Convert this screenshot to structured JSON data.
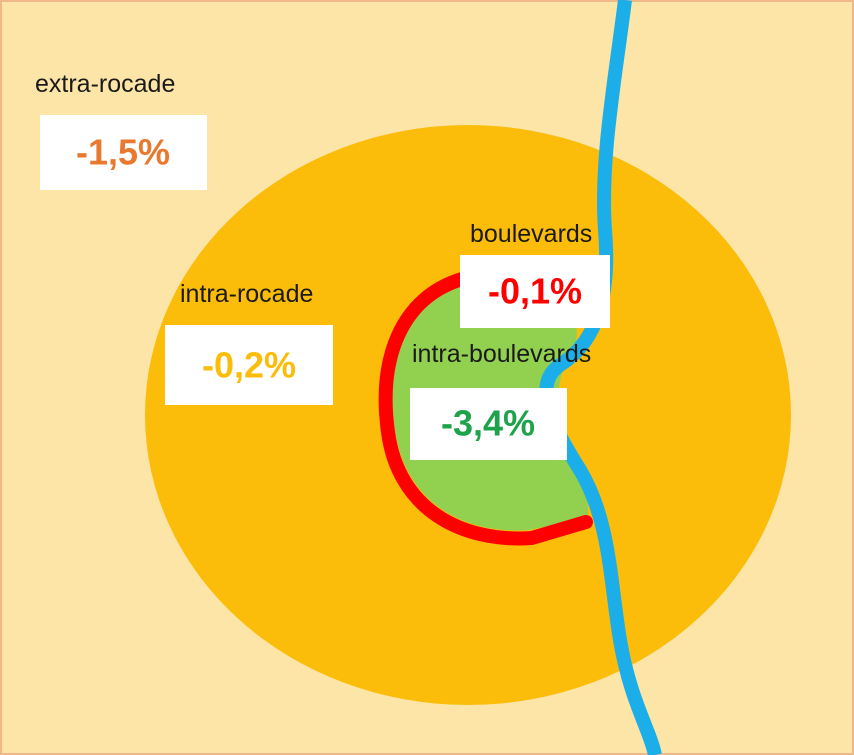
{
  "zones": [
    {
      "label": "extra-rocade",
      "value": "-1,5%"
    },
    {
      "label": "intra-rocade",
      "value": "-0,2%"
    },
    {
      "label": "boulevards",
      "value": "-0,1%"
    },
    {
      "label": "intra-boulevards",
      "value": "-3,4%"
    }
  ]
}
